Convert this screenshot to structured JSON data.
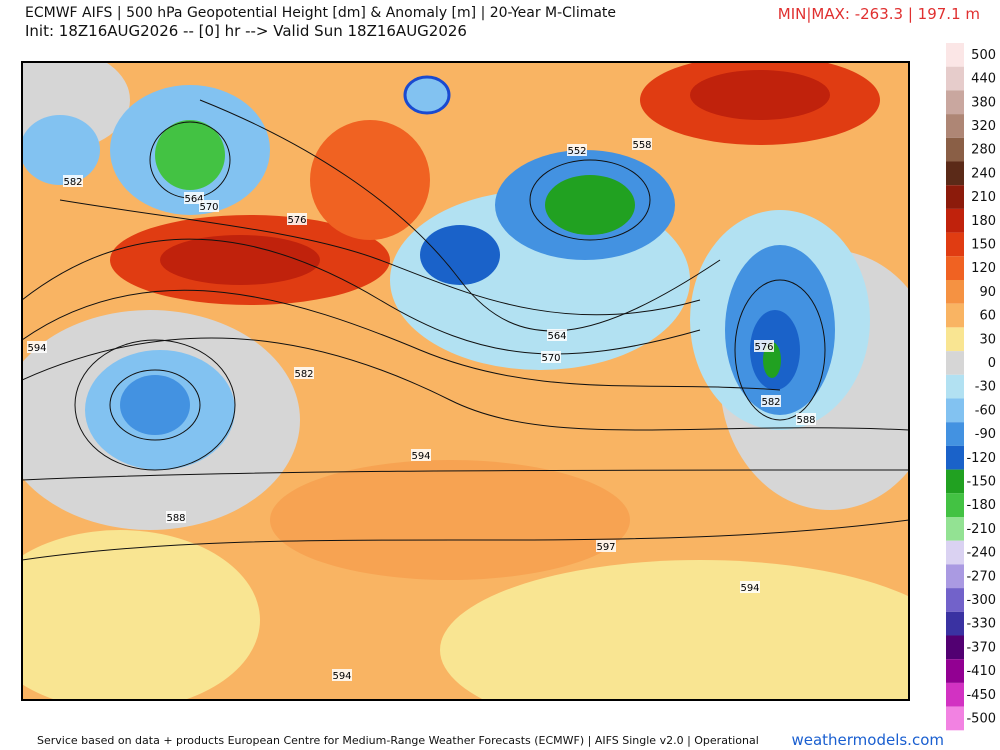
{
  "header": {
    "title": "ECMWF AIFS | 500 hPa Geopotential Height [dm] & Anomaly [m] | 20-Year M-Climate",
    "subtitle": "Init: 18Z16AUG2026 -- [0] hr --> Valid Sun 18Z16AUG2026",
    "minmax": "MIN|MAX: -263.3 | 197.1 m"
  },
  "colorbar": {
    "labels": [
      500,
      440,
      380,
      320,
      280,
      240,
      210,
      180,
      150,
      120,
      90,
      60,
      30,
      0,
      -30,
      -60,
      -90,
      -120,
      -150,
      -180,
      -210,
      -240,
      -270,
      -300,
      -330,
      -370,
      -410,
      -450,
      -500
    ],
    "colors": [
      "#fbe6e6",
      "#e6cccb",
      "#c9a79f",
      "#ae8675",
      "#8a5f46",
      "#5b2a18",
      "#8c1b0b",
      "#c0220c",
      "#e03c12",
      "#f06222",
      "#f59242",
      "#f9b463",
      "#f9e592",
      "#d6d6d6",
      "#b2e1f2",
      "#82c2f1",
      "#4392e1",
      "#1a62c9",
      "#21a121",
      "#43c243",
      "#93e293",
      "#dad2f2",
      "#aa9ae2",
      "#7262ca",
      "#3a32a2",
      "#520072",
      "#920092",
      "#d232c2",
      "#f282e2"
    ]
  },
  "contour_labels": [
    582,
    564,
    570,
    576,
    594,
    582,
    552,
    558,
    564,
    570,
    576,
    582,
    588,
    594,
    588,
    597,
    594,
    594
  ],
  "footer": {
    "credit": "Service based on data + products European Centre for Medium-Range Weather Forecasts (ECMWF) | AIFS Single v2.0 | Operational",
    "site": "weathermodels.com"
  }
}
